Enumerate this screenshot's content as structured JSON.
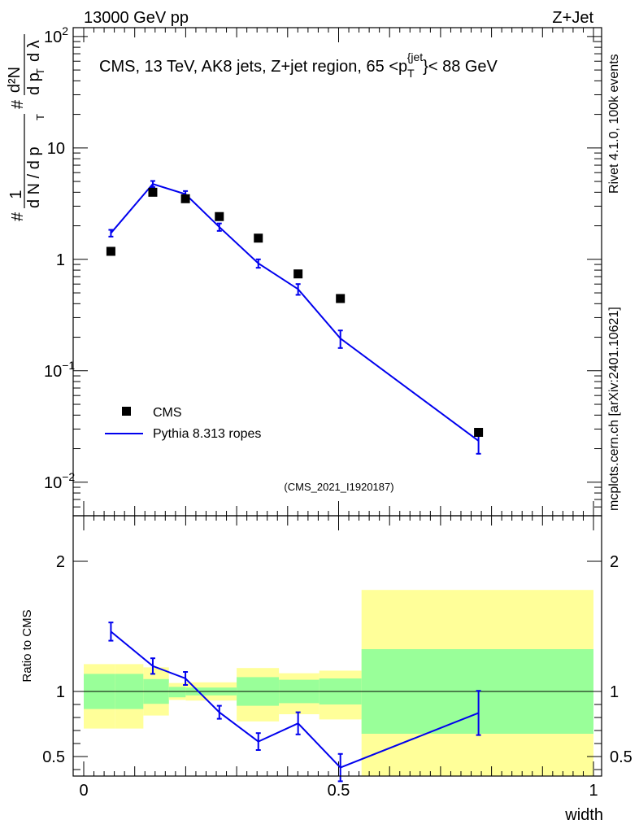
{
  "header": {
    "left": "13000 GeV pp",
    "right": "Z+Jet"
  },
  "side_labels": {
    "rivet": "Rivet 4.1.0,  100k events",
    "mcplots": "mcplots.cern.ch [arXiv:2401.10621]"
  },
  "chart_data": [
    {
      "name": "main",
      "type": "scatter",
      "title": "CMS, 13 TeV, AK8 jets, Z+jet region, 65 <p_T^{jet}< 88 GeV",
      "title_parts": {
        "main": "CMS, 13 TeV, AK8 jets, Z+jet region, 65 <p",
        "sub": "T",
        "sup": "{jet",
        "rest": "}< 88 GeV"
      },
      "ylabel": "# 1/(dN/dp_T) # d²N/(dp_T dλ)",
      "ylabel_parts": {
        "hash": "#",
        "one": "1",
        "dN": "d N / d p",
        "T": "T",
        "d2N": "d²N",
        "dpT": "d p",
        "dl": "d λ"
      },
      "yscale": "log",
      "ylim": [
        0.005,
        120
      ],
      "ytick_labels": [
        {
          "v": 100,
          "base": "10",
          "exp": "2"
        },
        {
          "v": 10,
          "base": "10",
          "exp": ""
        },
        {
          "v": 1,
          "base": "1",
          "exp": ""
        },
        {
          "v": 0.1,
          "base": "10",
          "exp": "−1"
        },
        {
          "v": 0.01,
          "base": "10",
          "exp": "−2"
        }
      ],
      "xlim": [
        0,
        1
      ],
      "watermark": "(CMS_2021_I1920187)",
      "legend": {
        "placement": "bottom-left",
        "entries": [
          "CMS",
          "Pythia 8.313 ropes"
        ]
      },
      "series": [
        {
          "name": "CMS",
          "style": "square-markers",
          "color": "#000000",
          "x": [
            0.0533,
            0.1355,
            0.1995,
            0.266,
            0.3425,
            0.4205,
            0.5035,
            0.7745
          ],
          "y": [
            1.18,
            4.0,
            3.5,
            2.42,
            1.55,
            0.74,
            0.445,
            0.028
          ]
        },
        {
          "name": "Pythia 8.313 ropes",
          "style": "line-with-errors",
          "color": "#0000ee",
          "x": [
            0.0533,
            0.1355,
            0.1995,
            0.266,
            0.3425,
            0.4205,
            0.5035,
            0.7745
          ],
          "y": [
            1.72,
            4.75,
            3.85,
            1.95,
            0.92,
            0.54,
            0.195,
            0.0235
          ],
          "yerr": [
            0.12,
            0.3,
            0.25,
            0.15,
            0.08,
            0.06,
            0.035,
            0.0055
          ]
        }
      ]
    },
    {
      "name": "ratio",
      "type": "line",
      "ylabel": "Ratio to CMS",
      "xlabel": "width",
      "ylim": [
        0.35,
        2.35
      ],
      "xlim": [
        -0.02,
        1.0
      ],
      "ytick_labels": [
        0.5,
        1,
        2
      ],
      "xtick_labels": [
        {
          "v": 0,
          "label": "0"
        },
        {
          "v": 0.5,
          "label": "0.5"
        },
        {
          "v": 1,
          "label": "1"
        }
      ],
      "reference_line": 1,
      "bands": [
        {
          "x0": 0.0,
          "x1": 0.061,
          "inner": [
            0.865,
            1.135
          ],
          "outer": [
            0.715,
            1.21
          ]
        },
        {
          "x0": 0.061,
          "x1": 0.117,
          "inner": [
            0.865,
            1.135
          ],
          "outer": [
            0.715,
            1.21
          ]
        },
        {
          "x0": 0.117,
          "x1": 0.167,
          "inner": [
            0.905,
            1.095
          ],
          "outer": [
            0.815,
            1.185
          ]
        },
        {
          "x0": 0.167,
          "x1": 0.2,
          "inner": [
            0.955,
            1.035
          ],
          "outer": [
            0.935,
            1.065
          ]
        },
        {
          "x0": 0.2,
          "x1": 0.3,
          "inner": [
            0.97,
            1.03
          ],
          "outer": [
            0.93,
            1.07
          ]
        },
        {
          "x0": 0.3,
          "x1": 0.383,
          "inner": [
            0.89,
            1.11
          ],
          "outer": [
            0.77,
            1.18
          ]
        },
        {
          "x0": 0.383,
          "x1": 0.462,
          "inner": [
            0.91,
            1.09
          ],
          "outer": [
            0.825,
            1.14
          ]
        },
        {
          "x0": 0.462,
          "x1": 0.545,
          "inner": [
            0.9,
            1.1
          ],
          "outer": [
            0.785,
            1.16
          ]
        },
        {
          "x0": 0.545,
          "x1": 1.0,
          "inner": [
            0.675,
            1.325
          ],
          "outer": [
            0.35,
            1.78
          ]
        }
      ],
      "series": [
        {
          "name": "Pythia 8.313 ropes / CMS",
          "color": "#0000ee",
          "x": [
            0.0533,
            0.1355,
            0.1995,
            0.266,
            0.3425,
            0.4205,
            0.5035,
            0.7745
          ],
          "y": [
            1.46,
            1.195,
            1.1,
            0.84,
            0.615,
            0.755,
            0.415,
            0.835
          ],
          "yerr": [
            0.07,
            0.06,
            0.05,
            0.05,
            0.065,
            0.085,
            0.105,
            0.17
          ]
        }
      ]
    }
  ],
  "colors": {
    "outer_band": "#ffff99",
    "inner_band": "#99ff99",
    "pythia": "#0000ee",
    "cms": "#000000"
  }
}
